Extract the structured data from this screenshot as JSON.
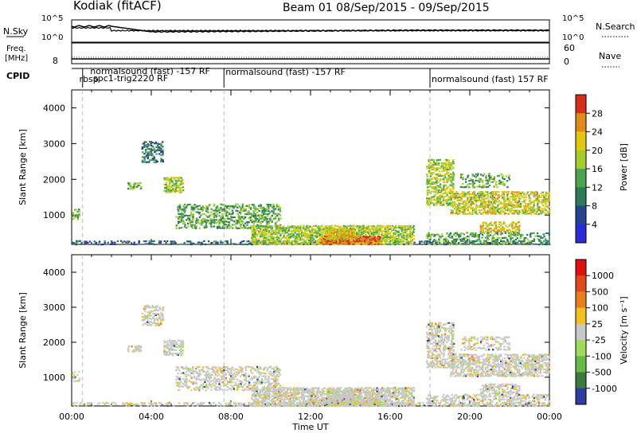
{
  "header": {
    "station": "Kodiak (fitACF)",
    "beam_date": "Beam 01  08/Sep/2015 - 09/Sep/2015"
  },
  "labels": {
    "nsky": "N.Sky",
    "nsearch": "N.Search",
    "freq_line1": "Freq.",
    "freq_line2": "[MHz]",
    "nave": "Nave",
    "cpid": "CPID",
    "tick_1e5": "10^5",
    "tick_1e0": "10^0",
    "freq_tick": "8",
    "nave_60": "60",
    "nave_0": "0"
  },
  "cpid_labels": [
    {
      "t": 0.3,
      "text": "rbsp"
    },
    {
      "t": 0.85,
      "text": "normalsound (fast) -157 RF"
    },
    {
      "t": 1.0,
      "text": "spc1-trig2220 RF"
    },
    {
      "t": 7.65,
      "text": "normalsound (fast) -157 RF"
    },
    {
      "t": 18.0,
      "text": "normalsound (fast) 157 RF"
    }
  ],
  "cpid_changes": [
    0.55,
    7.65,
    18.0
  ],
  "chart_data": [
    {
      "type": "heatmap",
      "title": "Power",
      "ylabel": "Slant Range [km]",
      "xlim": [
        0,
        24
      ],
      "ylim": [
        180,
        4500
      ],
      "yticks": [
        1000,
        2000,
        3000,
        4000
      ],
      "colorbar": {
        "label": "Power [dB]",
        "ticks": [
          4,
          8,
          12,
          16,
          20,
          24,
          28
        ],
        "range": [
          0,
          32
        ],
        "colors": [
          "#2b2bd9",
          "#25448f",
          "#2d7a5a",
          "#4aa64e",
          "#a6cc2a",
          "#e6c70f",
          "#e08a1a",
          "#d62e1a"
        ]
      },
      "echo_regions": [
        {
          "t0": 0.0,
          "t1": 24.0,
          "r0": 200,
          "r1": 320,
          "density": 0.35,
          "level": 1.5
        },
        {
          "t0": 0.0,
          "t1": 0.4,
          "r0": 900,
          "r1": 1200,
          "density": 0.5,
          "level": 3.0
        },
        {
          "t0": 2.8,
          "t1": 3.5,
          "r0": 1750,
          "r1": 1950,
          "density": 0.7,
          "level": 3.0
        },
        {
          "t0": 3.5,
          "t1": 4.6,
          "r0": 2500,
          "r1": 3100,
          "density": 0.6,
          "level": 2.0
        },
        {
          "t0": 4.6,
          "t1": 5.6,
          "r0": 1650,
          "r1": 2100,
          "density": 0.7,
          "level": 4.0
        },
        {
          "t0": 5.2,
          "t1": 10.5,
          "r0": 650,
          "r1": 1350,
          "density": 0.5,
          "level": 3.0
        },
        {
          "t0": 9.0,
          "t1": 17.2,
          "r0": 200,
          "r1": 750,
          "density": 0.8,
          "level": 4.0
        },
        {
          "t0": 12.5,
          "t1": 15.5,
          "r0": 200,
          "r1": 450,
          "density": 0.9,
          "level": 6.5
        },
        {
          "t0": 12.8,
          "t1": 14.2,
          "r0": 350,
          "r1": 650,
          "density": 0.9,
          "level": 5.0
        },
        {
          "t0": 17.8,
          "t1": 19.2,
          "r0": 1300,
          "r1": 2600,
          "density": 0.6,
          "level": 4.0
        },
        {
          "t0": 19.0,
          "t1": 24.0,
          "r0": 1050,
          "r1": 1700,
          "density": 0.7,
          "level": 4.5
        },
        {
          "t0": 20.5,
          "t1": 22.5,
          "r0": 550,
          "r1": 850,
          "density": 0.6,
          "level": 5.0
        },
        {
          "t0": 19.5,
          "t1": 22.0,
          "r0": 1800,
          "r1": 2200,
          "density": 0.4,
          "level": 3.0
        },
        {
          "t0": 17.8,
          "t1": 24.0,
          "r0": 200,
          "r1": 550,
          "density": 0.5,
          "level": 3.0
        }
      ]
    },
    {
      "type": "heatmap",
      "title": "Velocity",
      "ylabel": "Slant Range [km]",
      "xlabel": "Time UT",
      "xlim": [
        0,
        24
      ],
      "ylim": [
        180,
        4500
      ],
      "xticks": [
        "00:00",
        "04:00",
        "08:00",
        "12:00",
        "16:00",
        "20:00",
        "00:00"
      ],
      "yticks": [
        1000,
        2000,
        3000,
        4000
      ],
      "colorbar": {
        "label": "Velocity [m s^-1]",
        "ticks": [
          "1000",
          "500",
          "100",
          "25",
          "-25",
          "-100",
          "-500",
          "-1000"
        ],
        "colors": [
          "#2d3da0",
          "#3a7a3a",
          "#66bb44",
          "#9fdc5a",
          "#c8c8c8",
          "#f2c01f",
          "#e8801a",
          "#e04a1a",
          "#e01010"
        ]
      }
    }
  ],
  "time_series": {
    "nsky": "Noise (sky) trace, near 10^5 at 00:00 decreasing to about 10^3 by 04:00",
    "nave_level": 8
  }
}
